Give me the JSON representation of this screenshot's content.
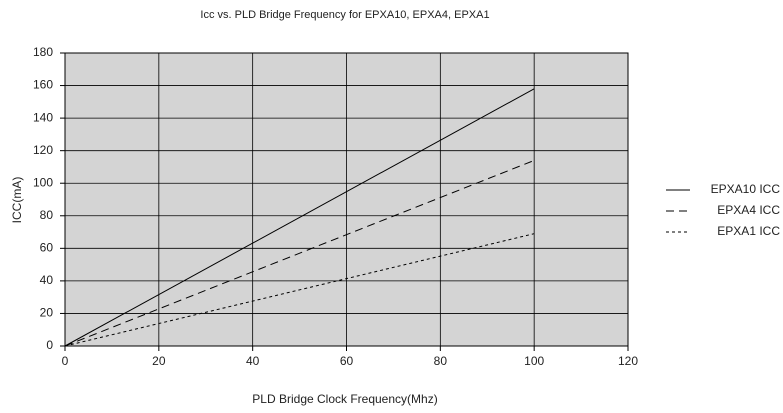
{
  "chart_data": {
    "type": "line",
    "title": "Icc vs. PLD Bridge Frequency for EPXA10, EPXA4, EPXA1",
    "x_label": "PLD Bridge Clock Frequency(Mhz)",
    "y_label": "ICC(mA)",
    "x": [
      0,
      100
    ],
    "series": [
      {
        "name": "EPXA10 ICC",
        "color": "#000000",
        "dash": "solid",
        "values": [
          0,
          158
        ]
      },
      {
        "name": "EPXA4 ICC",
        "color": "#000000",
        "dash": "dashed",
        "values": [
          0,
          114
        ]
      },
      {
        "name": "EPXA1 ICC",
        "color": "#000000",
        "dash": "dotted",
        "values": [
          0,
          69
        ]
      }
    ],
    "xlim": [
      0,
      120
    ],
    "xticks": [
      0,
      20,
      40,
      60,
      80,
      100,
      120
    ],
    "ylim": [
      0,
      180
    ],
    "yticks": [
      0,
      20,
      40,
      60,
      80,
      100,
      120,
      140,
      160,
      180
    ],
    "grid": true,
    "plot_background": "#d4d4d4",
    "legend": "right"
  }
}
